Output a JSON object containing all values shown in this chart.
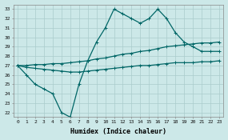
{
  "xlabel": "Humidex (Indice chaleur)",
  "x": [
    0,
    1,
    2,
    3,
    4,
    5,
    6,
    7,
    8,
    9,
    10,
    11,
    12,
    13,
    14,
    15,
    16,
    17,
    18,
    19,
    20,
    21,
    22,
    23
  ],
  "line_main": [
    27,
    26,
    25,
    24.5,
    24,
    22,
    21.5,
    25,
    27.5,
    29.5,
    31,
    33,
    32.5,
    32,
    31.5,
    32,
    33,
    32,
    30.5,
    29.5,
    29,
    28.5,
    28.5,
    28.5
  ],
  "line_upper": [
    27,
    27.0,
    27.1,
    27.1,
    27.2,
    27.2,
    27.3,
    27.4,
    27.5,
    27.7,
    27.8,
    28.0,
    28.2,
    28.3,
    28.5,
    28.6,
    28.8,
    29.0,
    29.1,
    29.2,
    29.3,
    29.4,
    29.4,
    29.5
  ],
  "line_lower": [
    27,
    26.8,
    26.7,
    26.6,
    26.5,
    26.4,
    26.3,
    26.3,
    26.4,
    26.5,
    26.6,
    26.7,
    26.8,
    26.9,
    27.0,
    27.0,
    27.1,
    27.2,
    27.3,
    27.3,
    27.3,
    27.4,
    27.4,
    27.5
  ],
  "ylim": [
    21.5,
    33.5
  ],
  "yticks": [
    22,
    23,
    24,
    25,
    26,
    27,
    28,
    29,
    30,
    31,
    32,
    33
  ],
  "xticks": [
    0,
    1,
    2,
    3,
    4,
    5,
    6,
    7,
    8,
    9,
    10,
    11,
    12,
    13,
    14,
    15,
    16,
    17,
    18,
    19,
    20,
    21,
    22,
    23
  ],
  "line_color": "#006666",
  "bg_color": "#cce8e8",
  "grid_color": "#aacccc"
}
